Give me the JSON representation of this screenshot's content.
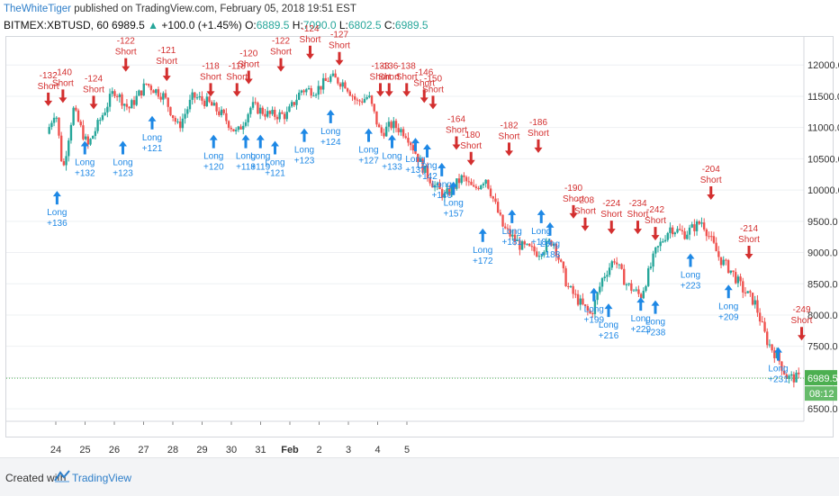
{
  "header": {
    "author": "TheWhiteTiger",
    "published": " published on TradingView.com, February 05, 2018 19:51 EST",
    "symbol": "BITMEX:XBTUSD, 60",
    "last": "6989.5",
    "change": "+100.0 (+1.45%)",
    "o_label": "O:",
    "o_val": "6889.5",
    "h_label": "H:",
    "h_val": "7090.0",
    "l_label": "L:",
    "l_val": "6802.5",
    "c_label": "C:",
    "c_val": "6989.5"
  },
  "footer": {
    "created_with": "Created with",
    "brand": "TradingView"
  },
  "price_badge": {
    "price": "6989.5",
    "countdown": "08:12"
  },
  "colors": {
    "up": "#26a69a",
    "down": "#ef5350",
    "short": "#d32f2f",
    "long": "#1e88e5",
    "badge": "#4caf50"
  },
  "chart_data": {
    "type": "candlestick",
    "ylim": [
      6300,
      12450
    ],
    "y_ticks": [
      "6500.0",
      "7000.0",
      "7500.0",
      "8000.0",
      "8500.0",
      "9000.0",
      "9500.0",
      "10000.0",
      "10500.0",
      "11000.0",
      "11500.0",
      "12000.0"
    ],
    "x_ticks": [
      "24",
      "25",
      "26",
      "27",
      "28",
      "29",
      "30",
      "31",
      "Feb",
      "2",
      "3",
      "4",
      "5"
    ],
    "last_price": 6989.5,
    "path": [
      [
        0,
        10900
      ],
      [
        0.3,
        11300
      ],
      [
        0.55,
        10300
      ],
      [
        0.9,
        11300
      ],
      [
        1.4,
        10700
      ],
      [
        1.9,
        11200
      ],
      [
        2.3,
        11600
      ],
      [
        2.8,
        11300
      ],
      [
        3.4,
        11700
      ],
      [
        4.0,
        11500
      ],
      [
        4.5,
        11000
      ],
      [
        5.0,
        11500
      ],
      [
        5.5,
        11400
      ],
      [
        6.0,
        11200
      ],
      [
        6.5,
        10900
      ],
      [
        7.0,
        11350
      ],
      [
        7.6,
        11200
      ],
      [
        8.2,
        11200
      ],
      [
        8.7,
        11600
      ],
      [
        9.2,
        11600
      ],
      [
        9.7,
        11800
      ],
      [
        10.2,
        11700
      ],
      [
        10.6,
        11400
      ],
      [
        11.0,
        11500
      ],
      [
        11.4,
        10900
      ],
      [
        11.8,
        11050
      ],
      [
        12.3,
        10900
      ],
      [
        12.8,
        10400
      ],
      [
        13.2,
        10100
      ],
      [
        13.6,
        9900
      ],
      [
        14.2,
        10200
      ],
      [
        14.6,
        10000
      ],
      [
        15.0,
        10200
      ],
      [
        15.6,
        9400
      ],
      [
        16.2,
        9100
      ],
      [
        16.8,
        9000
      ],
      [
        17.3,
        9200
      ],
      [
        17.8,
        8450
      ],
      [
        18.3,
        8150
      ],
      [
        18.6,
        8000
      ],
      [
        19.0,
        8600
      ],
      [
        19.4,
        8900
      ],
      [
        19.8,
        8500
      ],
      [
        20.3,
        8300
      ],
      [
        20.8,
        9000
      ],
      [
        21.3,
        9400
      ],
      [
        21.8,
        9300
      ],
      [
        22.4,
        9500
      ],
      [
        23.0,
        8900
      ],
      [
        23.4,
        8700
      ],
      [
        23.8,
        8400
      ],
      [
        24.2,
        8200
      ],
      [
        24.6,
        7600
      ],
      [
        25.0,
        7300
      ],
      [
        25.3,
        7000
      ],
      [
        25.7,
        6989.5
      ]
    ],
    "signals": [
      {
        "type": "short",
        "x": 0.05,
        "price": 11300,
        "label": "-132"
      },
      {
        "type": "short",
        "x": 0.55,
        "price": 11350,
        "label": "-140"
      },
      {
        "type": "short",
        "x": 1.6,
        "price": 11250,
        "label": "-124"
      },
      {
        "type": "short",
        "x": 2.7,
        "price": 11850,
        "label": "-122"
      },
      {
        "type": "short",
        "x": 4.1,
        "price": 11700,
        "label": "-121"
      },
      {
        "type": "short",
        "x": 5.6,
        "price": 11450,
        "label": "-118"
      },
      {
        "type": "short",
        "x": 6.5,
        "price": 11450,
        "label": "-118"
      },
      {
        "type": "short",
        "x": 6.9,
        "price": 11650,
        "label": "-120"
      },
      {
        "type": "short",
        "x": 8.0,
        "price": 11850,
        "label": "-122"
      },
      {
        "type": "short",
        "x": 9.0,
        "price": 12050,
        "label": "-124"
      },
      {
        "type": "short",
        "x": 10.0,
        "price": 11950,
        "label": "-127"
      },
      {
        "type": "short",
        "x": 11.4,
        "price": 11450,
        "label": "-133"
      },
      {
        "type": "short",
        "x": 11.7,
        "price": 11450,
        "label": "-136"
      },
      {
        "type": "short",
        "x": 12.3,
        "price": 11450,
        "label": "-138"
      },
      {
        "type": "short",
        "x": 12.9,
        "price": 11350,
        "label": "-146"
      },
      {
        "type": "short",
        "x": 13.2,
        "price": 11250,
        "label": "-150"
      },
      {
        "type": "short",
        "x": 14.0,
        "price": 10600,
        "label": "-164"
      },
      {
        "type": "short",
        "x": 14.5,
        "price": 10350,
        "label": "-180"
      },
      {
        "type": "short",
        "x": 15.8,
        "price": 10500,
        "label": "-182"
      },
      {
        "type": "short",
        "x": 16.8,
        "price": 10550,
        "label": "-186"
      },
      {
        "type": "short",
        "x": 18.0,
        "price": 9500,
        "label": "-190"
      },
      {
        "type": "short",
        "x": 18.4,
        "price": 9300,
        "label": "-208"
      },
      {
        "type": "short",
        "x": 19.3,
        "price": 9250,
        "label": "-224"
      },
      {
        "type": "short",
        "x": 20.2,
        "price": 9250,
        "label": "-234"
      },
      {
        "type": "short",
        "x": 20.8,
        "price": 9150,
        "label": "-242"
      },
      {
        "type": "short",
        "x": 22.7,
        "price": 9800,
        "label": "-204"
      },
      {
        "type": "short",
        "x": 24.0,
        "price": 8850,
        "label": "-214"
      },
      {
        "type": "short",
        "x": 25.8,
        "price": 7550,
        "label": "-249"
      }
    ],
    "longs": [
      {
        "x": 0.35,
        "price": 10000,
        "label": "+136"
      },
      {
        "x": 1.3,
        "price": 10800,
        "label": "+132"
      },
      {
        "x": 2.6,
        "price": 10800,
        "label": "+123"
      },
      {
        "x": 3.6,
        "price": 11200,
        "label": "+121"
      },
      {
        "x": 5.7,
        "price": 10900,
        "label": "+120"
      },
      {
        "x": 6.8,
        "price": 10900,
        "label": "+118"
      },
      {
        "x": 7.3,
        "price": 10900,
        "label": "+119"
      },
      {
        "x": 7.8,
        "price": 10800,
        "label": "+121"
      },
      {
        "x": 8.8,
        "price": 11000,
        "label": "+123"
      },
      {
        "x": 9.7,
        "price": 11300,
        "label": "+124"
      },
      {
        "x": 11.0,
        "price": 11000,
        "label": "+127"
      },
      {
        "x": 11.8,
        "price": 10900,
        "label": "+133"
      },
      {
        "x": 12.6,
        "price": 10850,
        "label": "+137"
      },
      {
        "x": 13.0,
        "price": 10750,
        "label": "+142"
      },
      {
        "x": 13.5,
        "price": 10450,
        "label": "+146"
      },
      {
        "x": 13.9,
        "price": 10150,
        "label": "+157"
      },
      {
        "x": 14.9,
        "price": 9400,
        "label": "+172"
      },
      {
        "x": 15.9,
        "price": 9700,
        "label": "+181"
      },
      {
        "x": 16.9,
        "price": 9700,
        "label": "+184"
      },
      {
        "x": 17.2,
        "price": 9500,
        "label": "+188"
      },
      {
        "x": 18.7,
        "price": 8450,
        "label": "+199"
      },
      {
        "x": 19.2,
        "price": 8200,
        "label": "+216"
      },
      {
        "x": 20.3,
        "price": 8300,
        "label": "+229"
      },
      {
        "x": 20.8,
        "price": 8250,
        "label": "+238"
      },
      {
        "x": 22.0,
        "price": 9000,
        "label": "+223"
      },
      {
        "x": 23.3,
        "price": 8500,
        "label": "+209"
      },
      {
        "x": 25.0,
        "price": 7500,
        "label": "+231"
      }
    ]
  }
}
